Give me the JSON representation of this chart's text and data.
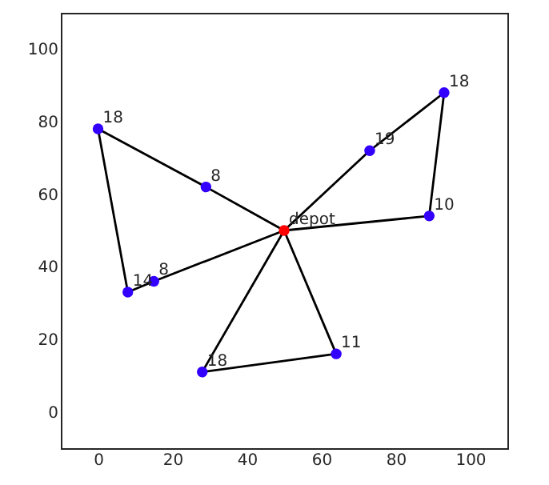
{
  "chart_data": {
    "type": "scatter",
    "xlim": [
      -10,
      110
    ],
    "ylim": [
      -10,
      110
    ],
    "xticks": [
      0,
      20,
      40,
      60,
      80,
      100
    ],
    "yticks": [
      0,
      20,
      40,
      60,
      80,
      100
    ],
    "grid": false,
    "series": [
      {
        "type": "line",
        "color": "#000000",
        "marker": "none",
        "line_style": "solid",
        "x": [
          50,
          29,
          0
        ],
        "values": [
          50,
          62,
          78
        ]
      },
      {
        "type": "line",
        "color": "#000000",
        "marker": "none",
        "line_style": "solid",
        "x": [
          0,
          8,
          15,
          50
        ],
        "values": [
          78,
          33,
          36,
          50
        ]
      },
      {
        "type": "line",
        "color": "#000000",
        "marker": "none",
        "line_style": "solid",
        "x": [
          50,
          73,
          93
        ],
        "values": [
          50,
          72,
          88
        ]
      },
      {
        "type": "line",
        "color": "#000000",
        "marker": "none",
        "line_style": "solid",
        "x": [
          93,
          89,
          50
        ],
        "values": [
          88,
          54,
          50
        ]
      },
      {
        "type": "line",
        "color": "#000000",
        "marker": "none",
        "line_style": "solid",
        "x": [
          50,
          28
        ],
        "values": [
          50,
          11
        ]
      },
      {
        "type": "line",
        "color": "#000000",
        "marker": "none",
        "line_style": "solid",
        "x": [
          28,
          64
        ],
        "values": [
          11,
          16
        ]
      },
      {
        "type": "line",
        "color": "#000000",
        "marker": "none",
        "line_style": "solid",
        "x": [
          64,
          50
        ],
        "values": [
          16,
          50
        ]
      },
      {
        "color": "#3300ff",
        "marker": "circle",
        "x": [
          0,
          29,
          73,
          93,
          89,
          8,
          15,
          28,
          64
        ],
        "values": [
          78,
          62,
          72,
          88,
          54,
          33,
          36,
          11,
          16
        ]
      },
      {
        "color": "#ff0000",
        "marker": "circle",
        "x": [
          50
        ],
        "values": [
          50
        ]
      }
    ],
    "annotations": [
      {
        "text": "18",
        "x": 0,
        "y": 78
      },
      {
        "text": "8",
        "x": 29,
        "y": 62
      },
      {
        "text": "19",
        "x": 73,
        "y": 72
      },
      {
        "text": "18",
        "x": 93,
        "y": 88
      },
      {
        "text": "10",
        "x": 89,
        "y": 54
      },
      {
        "text": "14",
        "x": 8,
        "y": 33
      },
      {
        "text": "8",
        "x": 15,
        "y": 36
      },
      {
        "text": "18",
        "x": 28,
        "y": 11
      },
      {
        "text": "11",
        "x": 64,
        "y": 16
      },
      {
        "text": "depot",
        "x": 50,
        "y": 50
      }
    ]
  }
}
